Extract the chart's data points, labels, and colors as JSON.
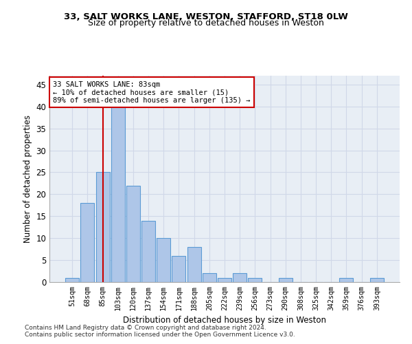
{
  "title1": "33, SALT WORKS LANE, WESTON, STAFFORD, ST18 0LW",
  "title2": "Size of property relative to detached houses in Weston",
  "xlabel": "Distribution of detached houses by size in Weston",
  "ylabel": "Number of detached properties",
  "footnote1": "Contains HM Land Registry data © Crown copyright and database right 2024.",
  "footnote2": "Contains public sector information licensed under the Open Government Licence v3.0.",
  "bin_labels": [
    "51sqm",
    "68sqm",
    "85sqm",
    "103sqm",
    "120sqm",
    "137sqm",
    "154sqm",
    "171sqm",
    "188sqm",
    "205sqm",
    "222sqm",
    "239sqm",
    "256sqm",
    "273sqm",
    "290sqm",
    "308sqm",
    "325sqm",
    "342sqm",
    "359sqm",
    "376sqm",
    "393sqm"
  ],
  "bar_values": [
    1,
    18,
    25,
    40,
    22,
    14,
    10,
    6,
    8,
    2,
    1,
    2,
    1,
    0,
    1,
    0,
    0,
    0,
    1,
    0,
    1
  ],
  "bar_color": "#aec6e8",
  "bar_edge_color": "#5b9bd5",
  "vline_x": 2,
  "vline_color": "#cc0000",
  "annotation_text": "33 SALT WORKS LANE: 83sqm\n← 10% of detached houses are smaller (15)\n89% of semi-detached houses are larger (135) →",
  "annotation_box_color": "#ffffff",
  "annotation_box_edge": "#cc0000",
  "ylim": [
    0,
    47
  ],
  "yticks": [
    0,
    5,
    10,
    15,
    20,
    25,
    30,
    35,
    40,
    45
  ],
  "grid_color": "#d0d8e8",
  "bg_color": "#e8eef5",
  "fig_bg_color": "#ffffff"
}
